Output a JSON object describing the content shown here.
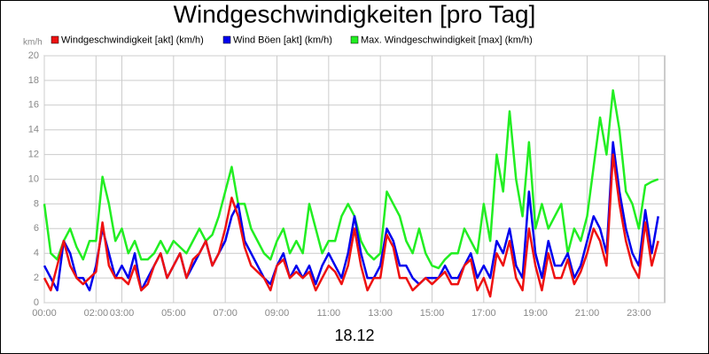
{
  "chart_data": {
    "type": "line",
    "title": "Windgeschwindigkeiten [pro Tag]",
    "y_unit": "km/h",
    "x_label": "18.12",
    "x": [
      0,
      0.25,
      0.5,
      0.75,
      1,
      1.25,
      1.5,
      1.75,
      2,
      2.25,
      2.5,
      2.75,
      3,
      3.25,
      3.5,
      3.75,
      4,
      4.25,
      4.5,
      4.75,
      5,
      5.25,
      5.5,
      5.75,
      6,
      6.25,
      6.5,
      6.75,
      7,
      7.25,
      7.5,
      7.75,
      8,
      8.25,
      8.5,
      8.75,
      9,
      9.25,
      9.5,
      9.75,
      10,
      10.25,
      10.5,
      10.75,
      11,
      11.25,
      11.5,
      11.75,
      12,
      12.25,
      12.5,
      12.75,
      13,
      13.25,
      13.5,
      13.75,
      14,
      14.25,
      14.5,
      14.75,
      15,
      15.25,
      15.5,
      15.75,
      16,
      16.25,
      16.5,
      16.75,
      17,
      17.25,
      17.5,
      17.75,
      18,
      18.25,
      18.5,
      18.75,
      19,
      19.25,
      19.5,
      19.75,
      20,
      20.25,
      20.5,
      20.75,
      21,
      21.25,
      21.5,
      21.75,
      22,
      22.25,
      22.5,
      22.75,
      23,
      23.25,
      23.5,
      23.75
    ],
    "series": [
      {
        "name": "Windgeschwindigkeit [akt] (km/h)",
        "color": "#ee1111",
        "values": [
          2,
          1,
          3,
          5,
          3,
          2,
          1.5,
          2,
          2.5,
          6.5,
          3,
          2,
          2,
          1.5,
          3,
          1,
          1.5,
          3,
          4,
          2,
          3,
          4,
          2,
          3.5,
          4,
          5,
          3,
          4,
          6,
          8.5,
          7,
          4.5,
          3,
          2.5,
          2,
          1,
          3,
          3.5,
          2,
          2.5,
          2,
          2.5,
          1,
          2,
          3,
          2.5,
          1.5,
          3,
          6,
          3,
          1,
          2,
          2,
          5.5,
          4.5,
          2,
          2,
          1,
          1.5,
          2,
          1.5,
          2,
          2.5,
          1.5,
          1.5,
          3,
          3.5,
          1,
          2,
          0.5,
          4,
          3,
          5,
          2,
          1,
          6,
          3,
          1,
          4,
          2,
          2,
          3.5,
          1.5,
          2.5,
          4,
          6,
          5,
          3,
          12,
          8,
          5,
          3,
          2,
          6.5,
          3,
          5
        ]
      },
      {
        "name": "Wind Böen [akt] (km/h)",
        "color": "#0000ee",
        "values": [
          3,
          2,
          1,
          5,
          4,
          2,
          2,
          1,
          3,
          6,
          4,
          2,
          3,
          2,
          4,
          1,
          2,
          3,
          4,
          2,
          3,
          4,
          2,
          3,
          4,
          5,
          3,
          4,
          5,
          7,
          8,
          5,
          4,
          3,
          2,
          1.5,
          3,
          4,
          2,
          3,
          2,
          3,
          1.5,
          3,
          4,
          3,
          2,
          4,
          7,
          4,
          2,
          2,
          3,
          6,
          5,
          3,
          3,
          2,
          1.5,
          2,
          2,
          2,
          3,
          2,
          2,
          3,
          4,
          2,
          3,
          2,
          5,
          4,
          6,
          3,
          2,
          9,
          4,
          2,
          5,
          3,
          3,
          4,
          2,
          3,
          5,
          7,
          6,
          4,
          13,
          9,
          6,
          4,
          3,
          7.5,
          4,
          7
        ]
      },
      {
        "name": "Max. Windgeschwindigkeit [max] (km/h)",
        "color": "#22ee22",
        "values": [
          8,
          4,
          3.5,
          5,
          6,
          4.5,
          3.5,
          5,
          5,
          10.2,
          8,
          5,
          6,
          4,
          5,
          3.5,
          3.5,
          4,
          5,
          4,
          5,
          4.5,
          4,
          5,
          6,
          5,
          5.5,
          7,
          9,
          11,
          8,
          8,
          6,
          5,
          4,
          3.5,
          5,
          6,
          4,
          5,
          4,
          8,
          6,
          4,
          5,
          5,
          7,
          8,
          7,
          5,
          4,
          3.5,
          4,
          9,
          8,
          7,
          5,
          4,
          6,
          4,
          3,
          2.8,
          3.5,
          4,
          4,
          6,
          5,
          4,
          8,
          5,
          12,
          9,
          15.5,
          10,
          7,
          13,
          6,
          8,
          6,
          7,
          8,
          4,
          6,
          5,
          7,
          11,
          15,
          12,
          17.2,
          14,
          9,
          8,
          6,
          9.5,
          9.8,
          10
        ]
      }
    ],
    "xlim": [
      0,
      24
    ],
    "xticks": [
      {
        "value": 0,
        "label": "00:00"
      },
      {
        "value": 2,
        "label": "02:00"
      },
      {
        "value": 3,
        "label": "03:00"
      },
      {
        "value": 5,
        "label": "05:00"
      },
      {
        "value": 7,
        "label": "07:00"
      },
      {
        "value": 9,
        "label": "09:00"
      },
      {
        "value": 11,
        "label": "11:00"
      },
      {
        "value": 13,
        "label": "13:00"
      },
      {
        "value": 15,
        "label": "15:00"
      },
      {
        "value": 17,
        "label": "17:00"
      },
      {
        "value": 19,
        "label": "19:00"
      },
      {
        "value": 21,
        "label": "21:00"
      },
      {
        "value": 23,
        "label": "23:00"
      }
    ],
    "ylim": [
      0,
      20
    ],
    "yticks": [
      0,
      2,
      4,
      6,
      8,
      10,
      12,
      14,
      16,
      18,
      20
    ],
    "grid": true
  }
}
